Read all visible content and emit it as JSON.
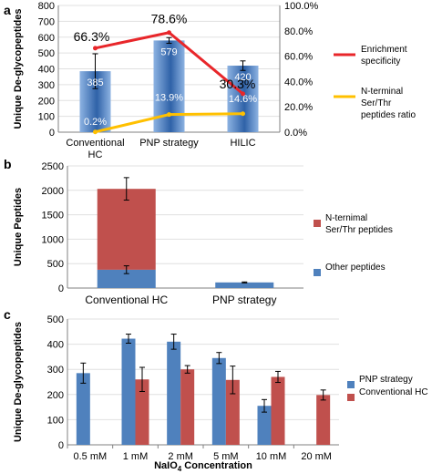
{
  "panels": [
    {
      "label": "a"
    },
    {
      "label": "b"
    },
    {
      "label": "c"
    }
  ],
  "colors": {
    "bar_blue_light": "#8db3e2",
    "bar_blue_dark": "#2f62a8",
    "pnp_blue": "#4f81bd",
    "conv_red": "#c0504d",
    "red_line": "#e8262a",
    "yellow_line": "#ffc000",
    "axis": "#808080",
    "grid": "#e0e0e0"
  },
  "chart_data": [
    {
      "panel": "a",
      "type": "bar",
      "categories": [
        "Conventional HC",
        "PNP strategy",
        "HILIC"
      ],
      "category_labels": [
        [
          "Conventional",
          "HC"
        ],
        [
          "PNP strategy"
        ],
        [
          "HILIC"
        ]
      ],
      "ylabel": "Unique De-glycopeptides",
      "ylim": [
        0,
        800
      ],
      "yticks": [
        0,
        100,
        200,
        300,
        400,
        500,
        600,
        700,
        800
      ],
      "y2lim": [
        0,
        100
      ],
      "y2ticks": [
        "0.0%",
        "20.0%",
        "40.0%",
        "60.0%",
        "80.0%",
        "100.0%"
      ],
      "series": [
        {
          "name": "Unique De-glycopeptides",
          "kind": "bar",
          "values": [
            385,
            579,
            420
          ],
          "errors": [
            110,
            18,
            30
          ],
          "value_labels": [
            "385",
            "579",
            "420"
          ]
        },
        {
          "name": "Enrichment specificity",
          "kind": "line",
          "axis": "right",
          "values": [
            66.3,
            78.6,
            30.3
          ],
          "value_labels": [
            "66.3%",
            "78.6%",
            "30.3%"
          ]
        },
        {
          "name": "N-terminal Ser/Thr peptides ratio",
          "kind": "line",
          "axis": "right",
          "values": [
            0.2,
            13.9,
            14.6
          ],
          "value_labels": [
            "0.2%",
            "13.9%",
            "14.6%"
          ]
        }
      ],
      "legend": {
        "position": "right",
        "items": [
          {
            "lines": [
              "Enrichment",
              "specificity"
            ],
            "color": "#e8262a"
          },
          {
            "lines": [
              "N-terminal",
              "Ser/Thr",
              "peptides ratio"
            ],
            "color": "#ffc000"
          }
        ]
      }
    },
    {
      "panel": "b",
      "type": "bar",
      "stacked": true,
      "categories": [
        "Conventional HC",
        "PNP strategy"
      ],
      "ylabel": "Unique Peptides",
      "ylim": [
        0,
        2500
      ],
      "yticks": [
        0,
        500,
        1000,
        1500,
        2000,
        2500
      ],
      "series": [
        {
          "name": "Other peptides",
          "values": [
            375,
            115
          ],
          "errors": [
            80,
            0
          ]
        },
        {
          "name": "N-ternimal Ser/Thr peptides",
          "values": [
            1655,
            0
          ],
          "errors": [
            230,
            10
          ]
        }
      ],
      "totals": [
        2030,
        115
      ],
      "legend": {
        "position": "right",
        "items": [
          {
            "lines": [
              "N-ternimal",
              "Ser/Thr peptides"
            ],
            "color": "#c0504d"
          },
          {
            "lines": [
              "Other peptides"
            ],
            "color": "#4f81bd"
          }
        ]
      }
    },
    {
      "panel": "c",
      "type": "bar",
      "categories": [
        "0.5 mM",
        "1 mM",
        "2 mM",
        "5 mM",
        "10 mM",
        "20 mM"
      ],
      "xlabel_main": "NaIO",
      "xlabel_sub": "4",
      "xlabel_tail": " Concentration",
      "ylabel": "Unique De-glycopeptides",
      "ylim": [
        0,
        500
      ],
      "yticks": [
        0,
        100,
        200,
        300,
        400,
        500
      ],
      "series": [
        {
          "name": "PNP strategy",
          "values": [
            285,
            422,
            410,
            345,
            155,
            null
          ],
          "errors": [
            40,
            18,
            30,
            22,
            25,
            null
          ]
        },
        {
          "name": "Conventional HC",
          "values": [
            null,
            260,
            300,
            258,
            270,
            198
          ],
          "errors": [
            null,
            48,
            15,
            55,
            22,
            20
          ]
        }
      ],
      "legend": {
        "position": "right",
        "items": [
          {
            "lines": [
              "PNP strategy"
            ],
            "color": "#4f81bd"
          },
          {
            "lines": [
              "Conventional HC"
            ],
            "color": "#c0504d"
          }
        ]
      }
    }
  ]
}
